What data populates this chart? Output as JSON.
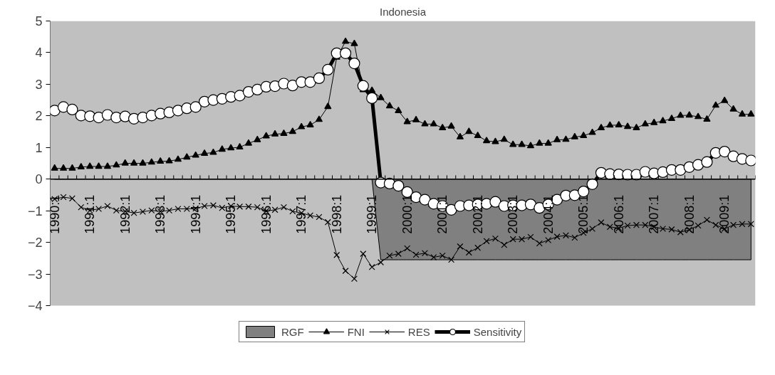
{
  "chart_data": {
    "type": "line",
    "title": "Indonesia",
    "categories": [
      "1990:1",
      null,
      null,
      null,
      "1991:1",
      null,
      null,
      null,
      "1992:1",
      null,
      null,
      null,
      "1993:1",
      null,
      null,
      null,
      "1994:1",
      null,
      null,
      null,
      "1995:1",
      null,
      null,
      null,
      "1996:1",
      null,
      null,
      null,
      "1997:1",
      null,
      null,
      null,
      "1998:1",
      null,
      null,
      null,
      "1999:1",
      null,
      null,
      null,
      "2000:1",
      null,
      null,
      null,
      "2001:1",
      null,
      null,
      null,
      "2002:1",
      null,
      null,
      null,
      "2003:1",
      null,
      null,
      null,
      "2004:1",
      null,
      null,
      null,
      "2005:1",
      null,
      null,
      null,
      "2006:1",
      null,
      null,
      null,
      "2007:1",
      null,
      null,
      null,
      "2008:1",
      null,
      null,
      null,
      "2009:1",
      null,
      null,
      null
    ],
    "series": [
      {
        "name": "RGF",
        "type": "area",
        "color": "#808080",
        "values": [
          0,
          0,
          0,
          0,
          0,
          0,
          0,
          0,
          0,
          0,
          0,
          0,
          0,
          0,
          0,
          0,
          0,
          0,
          0,
          0,
          0,
          0,
          0,
          0,
          0,
          0,
          0,
          0,
          0,
          0,
          0,
          0,
          0,
          0,
          0,
          0,
          0,
          -2.55,
          -2.55,
          -2.55,
          -2.55,
          -2.55,
          -2.55,
          -2.55,
          -2.55,
          -2.55,
          -2.55,
          -2.55,
          -2.55,
          -2.55,
          -2.55,
          -2.55,
          -2.55,
          -2.55,
          -2.55,
          -2.55,
          -2.55,
          -2.55,
          -2.55,
          -2.55,
          -2.55,
          -2.55,
          -2.55,
          -2.55,
          -2.55,
          -2.55,
          -2.55,
          -2.55,
          -2.55,
          -2.55,
          -2.55,
          -2.55,
          -2.55,
          -2.55,
          -2.55,
          -2.55,
          -2.55,
          -2.55,
          -2.55,
          -2.55
        ]
      },
      {
        "name": "FNI",
        "marker": "triangle",
        "color": "#000000",
        "values": [
          0.34,
          0.34,
          0.34,
          0.38,
          0.4,
          0.4,
          0.4,
          0.44,
          0.5,
          0.5,
          0.5,
          0.53,
          0.56,
          0.57,
          0.62,
          0.69,
          0.75,
          0.81,
          0.84,
          0.94,
          0.98,
          1.01,
          1.13,
          1.24,
          1.36,
          1.42,
          1.44,
          1.5,
          1.65,
          1.71,
          1.88,
          2.29,
          3.85,
          4.35,
          4.28,
          2.82,
          2.8,
          2.57,
          2.31,
          2.16,
          1.81,
          1.87,
          1.74,
          1.74,
          1.62,
          1.67,
          1.33,
          1.5,
          1.37,
          1.21,
          1.18,
          1.25,
          1.09,
          1.09,
          1.05,
          1.13,
          1.13,
          1.24,
          1.25,
          1.33,
          1.37,
          1.47,
          1.62,
          1.7,
          1.71,
          1.66,
          1.62,
          1.74,
          1.78,
          1.84,
          1.91,
          2.01,
          2.02,
          1.97,
          1.89,
          2.33,
          2.48,
          2.21,
          2.05,
          2.05
        ]
      },
      {
        "name": "RES",
        "marker": "cross",
        "color": "#000000",
        "values": [
          -0.63,
          -0.57,
          -0.61,
          -0.89,
          -0.99,
          -0.94,
          -0.85,
          -0.99,
          -1.02,
          -1.07,
          -1.03,
          -0.99,
          -1.02,
          -0.99,
          -0.94,
          -0.94,
          -0.93,
          -0.85,
          -0.83,
          -0.91,
          -0.85,
          -0.87,
          -0.87,
          -0.89,
          -1.01,
          -0.97,
          -0.89,
          -1.02,
          -1.07,
          -1.15,
          -1.2,
          -1.36,
          -2.4,
          -2.9,
          -3.15,
          -2.36,
          -2.78,
          -2.63,
          -2.42,
          -2.36,
          -2.19,
          -2.39,
          -2.34,
          -2.47,
          -2.42,
          -2.55,
          -2.13,
          -2.32,
          -2.17,
          -1.96,
          -1.88,
          -2.08,
          -1.9,
          -1.9,
          -1.83,
          -2.03,
          -1.93,
          -1.82,
          -1.78,
          -1.85,
          -1.7,
          -1.57,
          -1.37,
          -1.51,
          -1.55,
          -1.47,
          -1.45,
          -1.45,
          -1.51,
          -1.57,
          -1.59,
          -1.68,
          -1.6,
          -1.47,
          -1.29,
          -1.45,
          -1.57,
          -1.45,
          -1.42,
          -1.42
        ]
      },
      {
        "name": "Sensitivity",
        "marker": "circle",
        "color": "#000000",
        "values": [
          2.17,
          2.28,
          2.2,
          2.01,
          1.99,
          1.95,
          2.03,
          1.95,
          1.98,
          1.91,
          1.95,
          2.01,
          2.07,
          2.11,
          2.17,
          2.24,
          2.28,
          2.45,
          2.5,
          2.54,
          2.6,
          2.64,
          2.76,
          2.83,
          2.92,
          2.94,
          3.02,
          2.96,
          3.07,
          3.07,
          3.19,
          3.46,
          3.98,
          3.98,
          3.66,
          2.95,
          2.56,
          -0.11,
          -0.14,
          -0.21,
          -0.41,
          -0.57,
          -0.65,
          -0.78,
          -0.85,
          -0.97,
          -0.85,
          -0.83,
          -0.8,
          -0.78,
          -0.72,
          -0.85,
          -0.83,
          -0.83,
          -0.8,
          -0.91,
          -0.8,
          -0.65,
          -0.52,
          -0.51,
          -0.39,
          -0.16,
          0.2,
          0.16,
          0.15,
          0.14,
          0.14,
          0.23,
          0.18,
          0.22,
          0.29,
          0.29,
          0.38,
          0.45,
          0.54,
          0.83,
          0.87,
          0.72,
          0.64,
          0.59
        ]
      }
    ],
    "ylim": [
      -4,
      5
    ],
    "yticks": [
      -4,
      -3,
      -2,
      -1,
      0,
      1,
      2,
      3,
      4,
      5
    ],
    "grid": false,
    "legend": "bottom"
  }
}
